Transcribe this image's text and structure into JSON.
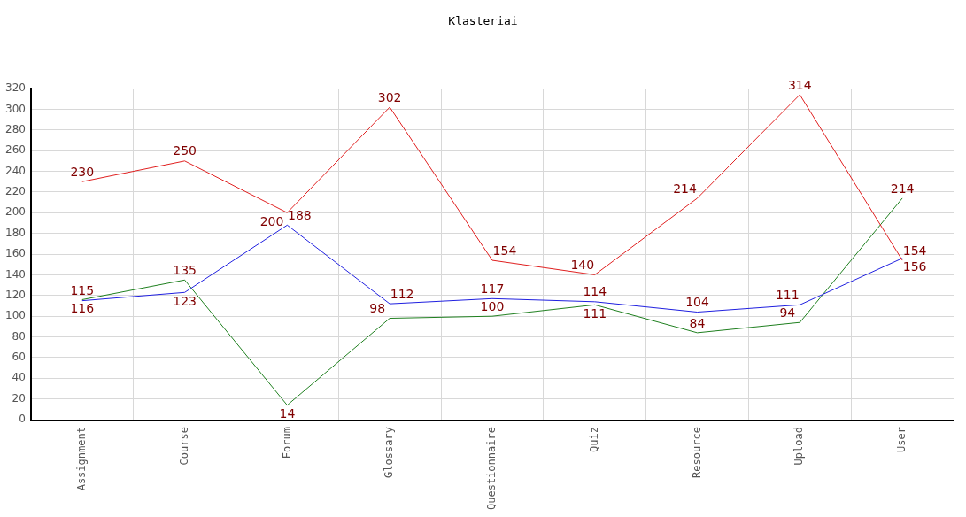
{
  "chart_data": {
    "type": "line",
    "title": "Klasteriai",
    "categories": [
      "Assignment",
      "Course",
      "Forum",
      "Glossary",
      "Questionnaire",
      "Quiz",
      "Resource",
      "Upload",
      "User"
    ],
    "series": [
      {
        "color": "#e02020",
        "values": [
          230,
          250,
          200,
          302,
          154,
          140,
          214,
          314,
          154
        ]
      },
      {
        "color": "#2020e0",
        "values": [
          115,
          123,
          188,
          112,
          117,
          114,
          104,
          111,
          156
        ]
      },
      {
        "color": "#208020",
        "values": [
          116,
          135,
          14,
          98,
          100,
          111,
          84,
          94,
          214
        ]
      }
    ],
    "ylim": [
      0,
      320
    ],
    "yticks": [
      0,
      20,
      40,
      60,
      80,
      100,
      120,
      140,
      160,
      180,
      200,
      220,
      240,
      260,
      280,
      300,
      320
    ],
    "grid": true,
    "legend": false,
    "marker": "none",
    "line_style": "solid",
    "data_labels": true
  }
}
